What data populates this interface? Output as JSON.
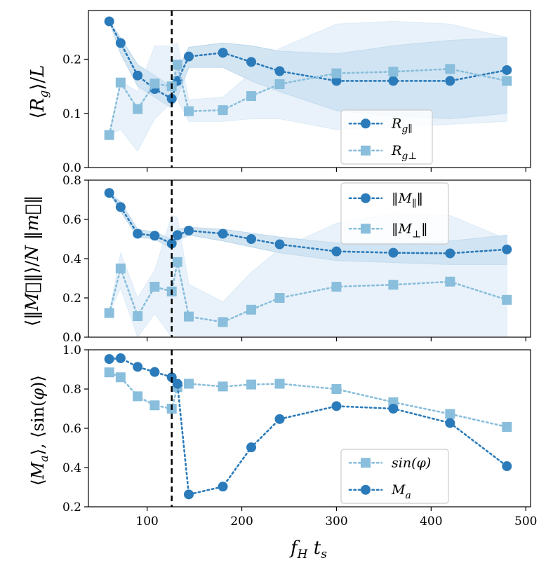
{
  "figure": {
    "xlabel": "f_H t_s",
    "x_ticks": [
      100,
      200,
      300,
      400,
      500
    ],
    "xlim": [
      38,
      505
    ],
    "vline_x": 126,
    "colors": {
      "dark": "#2b7bba",
      "light": "#89bedc",
      "band_dark": "#9fc6e3",
      "band_light": "#cfe3f3",
      "vline": "#000000"
    }
  },
  "chart_data": [
    {
      "type": "line",
      "name": "top",
      "ylabel": "⟨R_g⟩/L",
      "ylim": [
        0.0,
        0.29
      ],
      "y_ticks": [
        0.0,
        0.1,
        0.2
      ],
      "y_tick_labels": [
        "0.0",
        "0.1",
        "0.2"
      ],
      "legend_position": "lower-right",
      "series": [
        {
          "name": "R_g∥",
          "label_main": "R",
          "label_sub": "g∥",
          "color": "#2b7bba",
          "marker": "circle",
          "x": [
            60,
            72,
            90,
            108,
            126,
            132,
            144,
            180,
            210,
            240,
            300,
            360,
            420,
            480
          ],
          "y": [
            0.27,
            0.23,
            0.17,
            0.145,
            0.127,
            0.16,
            0.205,
            0.212,
            0.195,
            0.178,
            0.16,
            0.16,
            0.16,
            0.18
          ],
          "band_low": [
            0.27,
            0.21,
            0.15,
            0.13,
            0.11,
            0.13,
            0.185,
            0.185,
            0.16,
            0.14,
            0.105,
            0.095,
            0.09,
            0.1
          ],
          "band_high": [
            0.27,
            0.24,
            0.19,
            0.17,
            0.15,
            0.18,
            0.222,
            0.23,
            0.225,
            0.215,
            0.21,
            0.225,
            0.235,
            0.24
          ]
        },
        {
          "name": "R_g⊥",
          "label_main": "R",
          "label_sub": "g⊥",
          "color": "#89bedc",
          "marker": "square",
          "x": [
            60,
            72,
            90,
            108,
            126,
            132,
            144,
            180,
            210,
            240,
            300,
            360,
            420,
            480
          ],
          "y": [
            0.06,
            0.157,
            0.108,
            0.155,
            0.15,
            0.19,
            0.104,
            0.106,
            0.132,
            0.154,
            0.174,
            0.177,
            0.182,
            0.16
          ],
          "band_low": [
            0.06,
            0.07,
            0.03,
            0.09,
            0.12,
            0.125,
            0.085,
            0.085,
            0.09,
            0.09,
            0.07,
            0.075,
            0.08,
            0.085
          ],
          "band_high": [
            0.06,
            0.16,
            0.14,
            0.225,
            0.225,
            0.23,
            0.125,
            0.13,
            0.175,
            0.22,
            0.265,
            0.27,
            0.265,
            0.24
          ]
        }
      ]
    },
    {
      "type": "line",
      "name": "middle",
      "ylabel": "⟨‖M‖⟩/N‖m‖",
      "ylim": [
        0.0,
        0.8
      ],
      "y_ticks": [
        0.0,
        0.2,
        0.4,
        0.6,
        0.8
      ],
      "y_tick_labels": [
        "0.0",
        "0.2",
        "0.4",
        "0.6",
        "0.8"
      ],
      "legend_position": "upper-right",
      "series": [
        {
          "name": "‖M∥‖",
          "label_main": "‖M",
          "label_sub": "∥",
          "label_end": "‖",
          "color": "#2b7bba",
          "marker": "circle",
          "x": [
            60,
            72,
            90,
            108,
            126,
            132,
            144,
            180,
            210,
            240,
            300,
            360,
            420,
            480
          ],
          "y": [
            0.735,
            0.663,
            0.527,
            0.517,
            0.477,
            0.52,
            0.543,
            0.527,
            0.5,
            0.473,
            0.437,
            0.43,
            0.427,
            0.447
          ],
          "band_low": [
            0.735,
            0.64,
            0.51,
            0.5,
            0.45,
            0.49,
            0.52,
            0.49,
            0.46,
            0.43,
            0.39,
            0.38,
            0.37,
            0.37
          ],
          "band_high": [
            0.735,
            0.69,
            0.55,
            0.535,
            0.5,
            0.55,
            0.56,
            0.55,
            0.53,
            0.51,
            0.48,
            0.48,
            0.49,
            0.52
          ]
        },
        {
          "name": "‖M⊥‖",
          "label_main": "‖M",
          "label_sub": "⊥",
          "label_end": "‖",
          "color": "#89bedc",
          "marker": "square",
          "x": [
            60,
            72,
            90,
            108,
            126,
            132,
            144,
            180,
            210,
            240,
            300,
            360,
            420,
            480
          ],
          "y": [
            0.123,
            0.35,
            0.107,
            0.257,
            0.233,
            0.383,
            0.105,
            0.077,
            0.14,
            0.2,
            0.257,
            0.267,
            0.283,
            0.19
          ],
          "band_low": [
            0.123,
            0.25,
            0.0,
            0.12,
            0.0,
            0.0,
            0.0,
            0.0,
            0.0,
            0.0,
            0.0,
            0.0,
            0.0,
            0.0
          ],
          "band_high": [
            0.123,
            0.43,
            0.2,
            0.34,
            0.62,
            0.61,
            0.27,
            0.18,
            0.33,
            0.45,
            0.58,
            0.63,
            0.62,
            0.5
          ]
        }
      ]
    },
    {
      "type": "line",
      "name": "bottom",
      "ylabel": "⟨M_a⟩, ⟨sin(φ)⟩",
      "ylim": [
        0.2,
        1.0
      ],
      "y_ticks": [
        0.2,
        0.4,
        0.6,
        0.8,
        1.0
      ],
      "y_tick_labels": [
        "0.2",
        "0.4",
        "0.6",
        "0.8",
        "1.0"
      ],
      "legend_position": "lower-right",
      "series": [
        {
          "name": "sin(φ)",
          "label_main": "sin(φ)",
          "label_sub": "",
          "color": "#89bedc",
          "marker": "square",
          "x": [
            60,
            72,
            90,
            108,
            126,
            132,
            144,
            180,
            210,
            240,
            300,
            360,
            420,
            480
          ],
          "y": [
            0.885,
            0.86,
            0.763,
            0.717,
            0.7,
            0.81,
            0.827,
            0.813,
            0.823,
            0.827,
            0.8,
            0.733,
            0.673,
            0.607
          ]
        },
        {
          "name": "M_a",
          "label_main": "M",
          "label_sub": "a",
          "color": "#2b7bba",
          "marker": "circle",
          "x": [
            60,
            72,
            90,
            108,
            126,
            132,
            144,
            180,
            210,
            240,
            300,
            360,
            420,
            480
          ],
          "y": [
            0.953,
            0.957,
            0.913,
            0.887,
            0.86,
            0.827,
            0.263,
            0.303,
            0.503,
            0.647,
            0.713,
            0.7,
            0.627,
            0.407
          ]
        }
      ]
    }
  ]
}
